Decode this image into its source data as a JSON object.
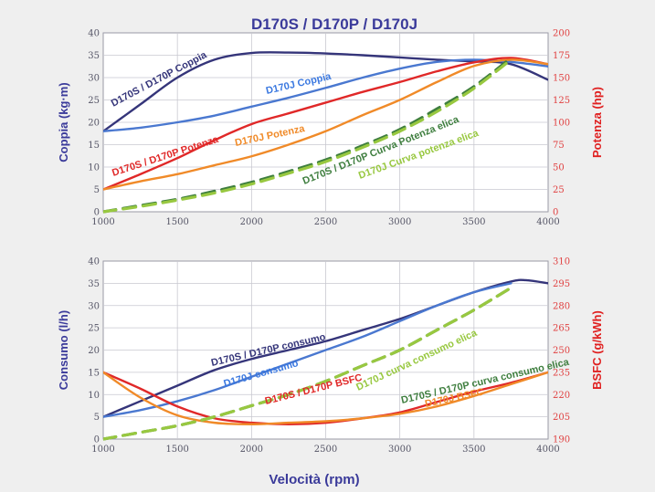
{
  "title": "D170S / D170P / D170J",
  "chart_data": [
    {
      "type": "line",
      "ylabel": "Coppia (kg·m)",
      "y2label": "Potenza (hp)",
      "xlim": [
        1000,
        4000
      ],
      "ylim": [
        0,
        40
      ],
      "y2lim": [
        0,
        200
      ],
      "xticks": [
        "1000",
        "1500",
        "2000",
        "2500",
        "3000",
        "3500",
        "4000"
      ],
      "yticks": [
        "0",
        "5",
        "10",
        "15",
        "20",
        "25",
        "30",
        "35",
        "40"
      ],
      "y2ticks": [
        "0",
        "25",
        "50",
        "75",
        "100",
        "125",
        "150",
        "175",
        "200"
      ],
      "series": [
        {
          "label": "D170S / D170P Coppia",
          "axis": "left",
          "color": "#35357a",
          "dashed": false,
          "x": [
            1000,
            1250,
            1500,
            1750,
            2000,
            2250,
            2500,
            2750,
            3000,
            3250,
            3500,
            3750,
            4000
          ],
          "y": [
            18,
            24,
            30,
            34,
            35.5,
            35.6,
            35.4,
            35,
            34.5,
            34,
            33.6,
            33,
            29.5
          ]
        },
        {
          "label": "D170J Coppia",
          "axis": "left",
          "color": "#4a78d0",
          "dashed": false,
          "x": [
            1000,
            1250,
            1500,
            1750,
            2000,
            2250,
            2500,
            2750,
            3000,
            3250,
            3500,
            3750,
            4000
          ],
          "y": [
            18,
            18.8,
            20,
            21.5,
            23.5,
            25.5,
            27.7,
            30,
            32,
            33.5,
            34,
            33.5,
            32.5
          ]
        },
        {
          "label": "D170S / D170P Potenza",
          "axis": "right",
          "color": "#e02828",
          "dashed": false,
          "x": [
            1000,
            1250,
            1500,
            1750,
            2000,
            2250,
            2500,
            2750,
            3000,
            3250,
            3500,
            3750,
            4000
          ],
          "y": [
            25,
            42,
            60,
            80,
            98,
            110,
            122,
            134,
            145,
            157,
            167,
            172,
            165
          ]
        },
        {
          "label": "D170J Potenza",
          "axis": "right",
          "color": "#f08a28",
          "dashed": false,
          "x": [
            1000,
            1250,
            1500,
            1750,
            2000,
            2250,
            2500,
            2750,
            3000,
            3250,
            3500,
            3750,
            4000
          ],
          "y": [
            25,
            34,
            42,
            52,
            62,
            75,
            90,
            108,
            125,
            145,
            163,
            170,
            165
          ]
        },
        {
          "label": "D170S / D170P Curva Potenza elica",
          "axis": "right",
          "color": "#3e7e3e",
          "dashed": true,
          "x": [
            1000,
            1250,
            1500,
            1750,
            2000,
            2250,
            2500,
            2750,
            3000,
            3250,
            3500,
            3750
          ],
          "y": [
            0,
            7,
            14,
            23,
            33,
            45,
            58,
            74,
            92,
            115,
            140,
            172
          ]
        },
        {
          "label": "D170J Curva potenza elica",
          "axis": "right",
          "color": "#98c840",
          "dashed": true,
          "x": [
            1000,
            1250,
            1500,
            1750,
            2000,
            2250,
            2500,
            2750,
            3000,
            3250,
            3500,
            3750
          ],
          "y": [
            0,
            6,
            13,
            21,
            31,
            43,
            56,
            72,
            90,
            112,
            138,
            170
          ]
        }
      ]
    },
    {
      "type": "line",
      "xlabel": "Velocità (rpm)",
      "ylabel": "Consumo (l/h)",
      "y2label": "BSFC (g/kWh)",
      "xlim": [
        1000,
        4000
      ],
      "ylim": [
        0,
        40
      ],
      "y2lim": [
        190,
        310
      ],
      "xticks": [
        "1000",
        "1500",
        "2000",
        "2500",
        "3000",
        "3500",
        "4000"
      ],
      "yticks": [
        "0",
        "5",
        "10",
        "15",
        "20",
        "25",
        "30",
        "35",
        "40"
      ],
      "y2ticks": [
        "190",
        "205",
        "220",
        "235",
        "250",
        "265",
        "280",
        "295",
        "310"
      ],
      "series": [
        {
          "label": "D170S / D170P consumo",
          "axis": "left",
          "color": "#35357a",
          "dashed": false,
          "x": [
            1000,
            1250,
            1500,
            1750,
            2000,
            2250,
            2500,
            2750,
            3000,
            3250,
            3500,
            3750,
            3850,
            4000
          ],
          "y": [
            5,
            8.5,
            12,
            15.5,
            18,
            20,
            22,
            24.5,
            27,
            30,
            33,
            35.4,
            35.7,
            35
          ]
        },
        {
          "label": "D170J consumo",
          "axis": "left",
          "color": "#4a78d0",
          "dashed": false,
          "x": [
            1000,
            1250,
            1500,
            1750,
            2000,
            2250,
            2500,
            2750,
            3000,
            3250,
            3500,
            3750
          ],
          "y": [
            5,
            6.5,
            8.5,
            11,
            14,
            17,
            20,
            23,
            26.5,
            30,
            33,
            35
          ]
        },
        {
          "label": "D170S / D170P BSFC",
          "axis": "right",
          "color": "#e02828",
          "dashed": false,
          "x": [
            1000,
            1250,
            1500,
            1750,
            2000,
            2250,
            2500,
            2750,
            3000,
            3250,
            3500,
            3750,
            4000
          ],
          "y": [
            235,
            224,
            212,
            204,
            201,
            200,
            201,
            204,
            208,
            215,
            222,
            228,
            235
          ]
        },
        {
          "label": "D170J BSFC",
          "axis": "right",
          "color": "#f08a28",
          "dashed": false,
          "x": [
            1000,
            1250,
            1500,
            1750,
            2000,
            2250,
            2500,
            2750,
            3000,
            3250,
            3500,
            3750,
            4000
          ],
          "y": [
            235,
            218,
            206,
            201,
            200,
            201,
            202,
            204,
            207,
            212,
            219,
            227,
            235
          ]
        },
        {
          "label": "D170S / D170P curva consumo elica",
          "axis": "left",
          "color": "#3e7e3e",
          "dashed": true,
          "x": [
            1000,
            1250,
            1500,
            1750,
            2000,
            2250,
            2500,
            2750,
            3000,
            3250,
            3500,
            3750
          ],
          "y": [
            0,
            1.5,
            3,
            5,
            7.5,
            10,
            13,
            16.5,
            20,
            24.5,
            29,
            34
          ]
        },
        {
          "label": "D170J curva consumo elica",
          "axis": "left",
          "color": "#98c840",
          "dashed": true,
          "x": [
            1000,
            1250,
            1500,
            1750,
            2000,
            2250,
            2500,
            2750,
            3000,
            3250,
            3500,
            3750
          ],
          "y": [
            0,
            1.5,
            3,
            5,
            7.5,
            10,
            13,
            16.5,
            20,
            24.5,
            29,
            34
          ]
        }
      ]
    }
  ]
}
